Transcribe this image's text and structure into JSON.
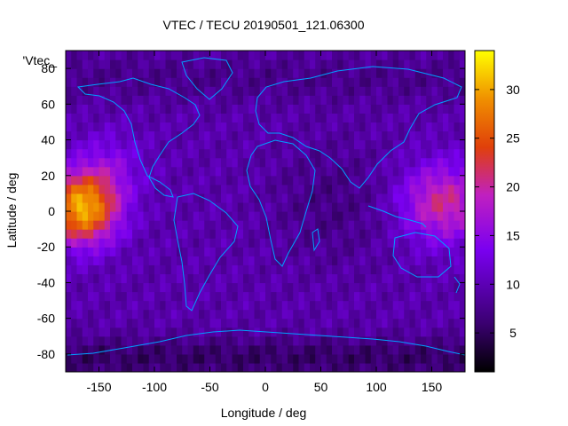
{
  "chart_data": {
    "type": "heatmap",
    "title": "VTEC / TECU 20190501_121.06300",
    "xlabel": "Longitude / deg",
    "ylabel": "Latitude / deg",
    "key_label": "'Vtec_",
    "xlim": [
      -180,
      180
    ],
    "ylim": [
      -90,
      90
    ],
    "x_ticks": [
      -150,
      -100,
      -50,
      0,
      50,
      100,
      150
    ],
    "y_ticks": [
      -80,
      -60,
      -40,
      -20,
      0,
      20,
      40,
      60,
      80
    ],
    "colorbar": {
      "range": [
        1,
        34
      ],
      "ticks": [
        5,
        10,
        15,
        20,
        25,
        30
      ]
    },
    "grid": false,
    "features": [
      {
        "name": "equatorial anomaly west",
        "lon": -165,
        "lat": 2,
        "peak": 32
      },
      {
        "name": "equatorial anomaly east",
        "lon": 160,
        "lat": 5,
        "peak": 22
      }
    ]
  },
  "colors": {
    "background": "#ffffff",
    "coastline": "#00a0ff",
    "palette": [
      "#000000",
      "#3a0070",
      "#7a00f0",
      "#c020c0",
      "#e0400a",
      "#f09000",
      "#ffff00"
    ]
  }
}
